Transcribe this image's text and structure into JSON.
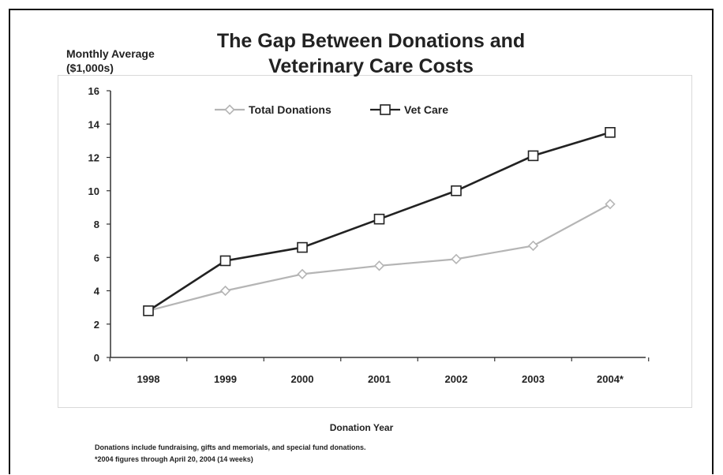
{
  "chart_data": {
    "type": "line",
    "title": "The Gap Between Donations and Veterinary Care Costs",
    "ylabel": "Monthly Average\n($1,000s)",
    "xlabel": "Donation Year",
    "categories": [
      "1998",
      "1999",
      "2000",
      "2001",
      "2002",
      "2003",
      "2004*"
    ],
    "ylim": [
      0,
      16
    ],
    "yticks": [
      0,
      2,
      4,
      6,
      8,
      10,
      12,
      14,
      16
    ],
    "grid": false,
    "legend_position": "top",
    "series": [
      {
        "name": "Total Donations",
        "values": [
          2.8,
          4.0,
          5.0,
          5.5,
          5.9,
          6.7,
          9.2
        ],
        "marker": "diamond",
        "color": "#b5b5b5"
      },
      {
        "name": "Vet Care",
        "values": [
          2.8,
          5.8,
          6.6,
          8.3,
          10.0,
          12.1,
          13.5
        ],
        "marker": "square",
        "color": "#222222"
      }
    ],
    "notes": [
      "Donations include fundraising, gifts and memorials, and special fund donations.",
      "*2004 figures through April 20, 2004 (14 weeks)"
    ]
  }
}
